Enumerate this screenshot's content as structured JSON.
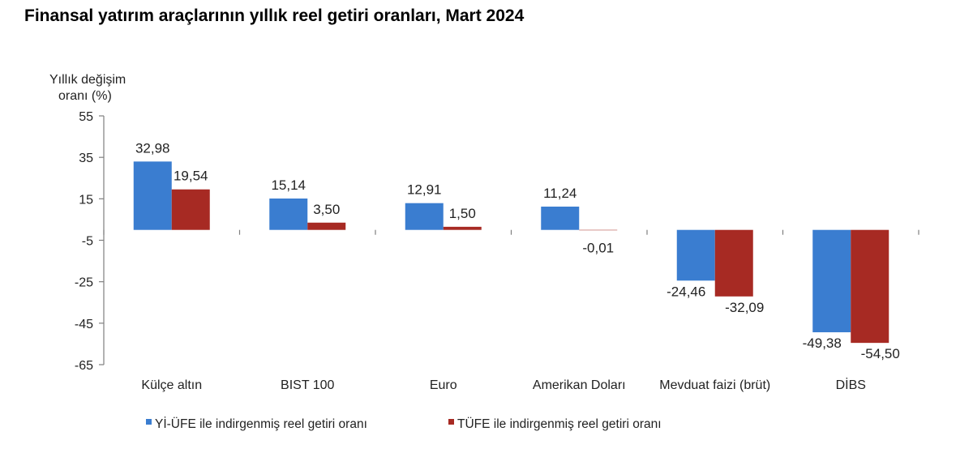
{
  "title": "Finansal yatırım araçlarının yıllık reel getiri oranları, Mart 2024",
  "chart_data": {
    "type": "bar",
    "title": "Finansal yatırım araçlarının yıllık reel getiri oranları, Mart 2024",
    "ylabel_lines": [
      "Yıllık değişim",
      "oranı (%)"
    ],
    "xlabel": "",
    "ylim": [
      -65,
      55
    ],
    "yticks": [
      55,
      35,
      15,
      -5,
      -25,
      -45,
      -65
    ],
    "grid": false,
    "legend_position": "bottom",
    "categories": [
      "Külçe altın",
      "BIST 100",
      "Euro",
      "Amerikan Doları",
      "Mevduat faizi (brüt)",
      "DİBS"
    ],
    "series": [
      {
        "name": "Yİ-ÜFE ile indirgenmiş reel getiri oranı",
        "color": "#3a7dd0",
        "values": [
          32.98,
          15.14,
          12.91,
          11.24,
          -24.46,
          -49.38
        ],
        "labels": [
          "32,98",
          "15,14",
          "12,91",
          "11,24",
          "-24,46",
          "-49,38"
        ]
      },
      {
        "name": "TÜFE ile indirgenmiş reel getiri oranı",
        "color": "#a72a23",
        "values": [
          19.54,
          3.5,
          1.5,
          -0.01,
          -32.09,
          -54.5
        ],
        "labels": [
          "19,54",
          "3,50",
          "1,50",
          "-0,01",
          "-32,09",
          "-54,50"
        ]
      }
    ]
  }
}
